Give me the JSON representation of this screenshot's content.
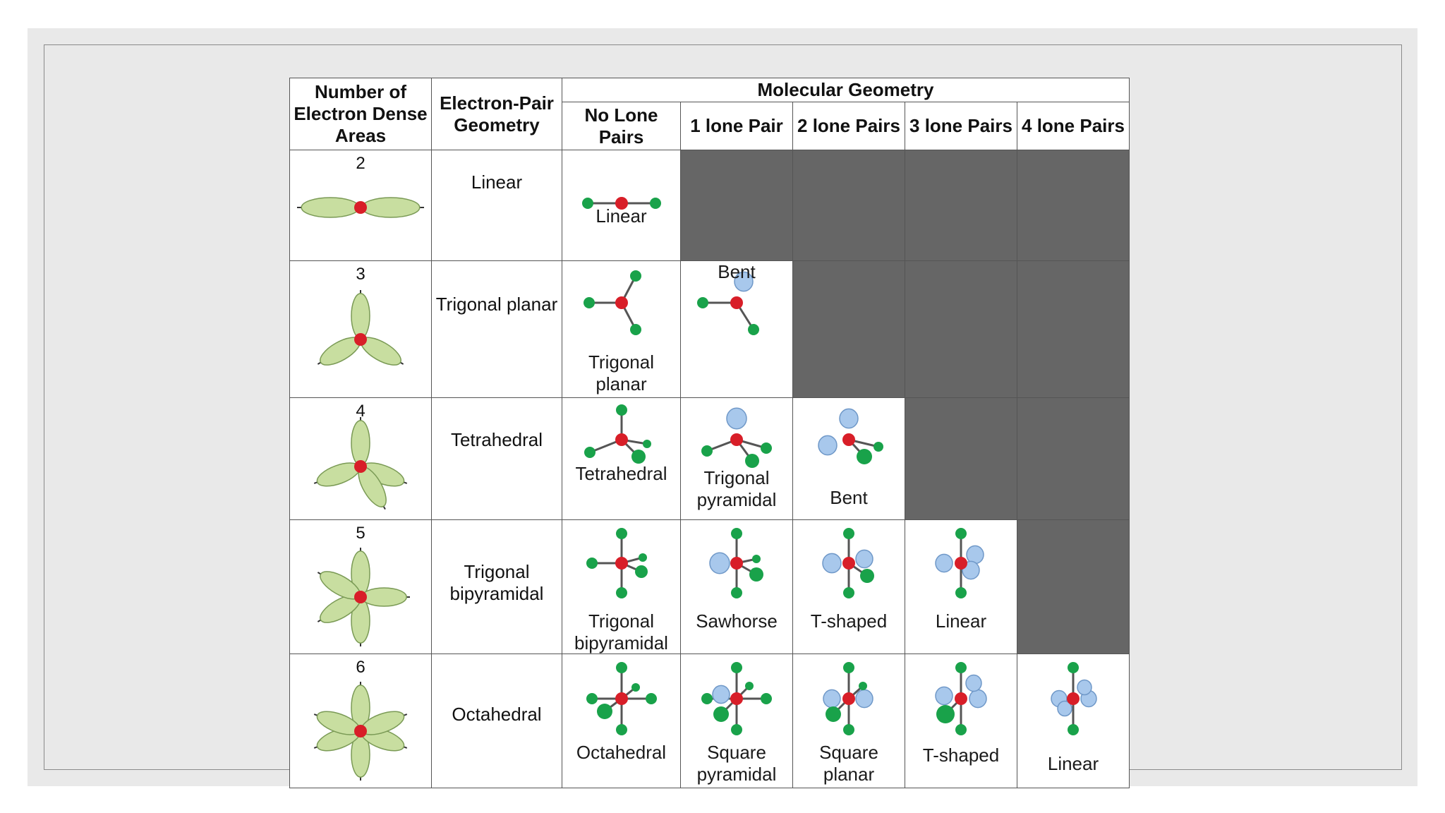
{
  "headers": {
    "count": "Number of Electron Dense Areas",
    "epg": "Electron-Pair Geometry",
    "molgeo": "Molecular Geometry",
    "lone": [
      "No Lone Pairs",
      "1 lone Pair",
      "2 lone Pairs",
      "3 lone Pairs",
      "4 lone Pairs"
    ]
  },
  "rows": [
    {
      "count": "2",
      "epg": "Linear",
      "mol": [
        "Linear",
        "",
        "",
        "",
        ""
      ]
    },
    {
      "count": "3",
      "epg": "Trigonal planar",
      "mol": [
        "Trigonal planar",
        "Bent",
        "",
        "",
        ""
      ]
    },
    {
      "count": "4",
      "epg": "Tetrahedral",
      "mol": [
        "Tetrahedral",
        "Trigonal pyramidal",
        "Bent",
        "",
        ""
      ]
    },
    {
      "count": "5",
      "epg": "Trigonal bipyramidal",
      "mol": [
        "Trigonal bipyramidal",
        "Sawhorse",
        "T-shaped",
        "Linear",
        ""
      ]
    },
    {
      "count": "6",
      "epg": "Octahedral",
      "mol": [
        "Octahedral",
        "Square pyramidal",
        "Square planar",
        "T-shaped",
        "Linear"
      ]
    }
  ],
  "colors": {
    "central_atom": "#d81e28",
    "outer_atom": "#19a24a",
    "lone_pair": "#a8c8ec",
    "orbital_lobe": "#c8dea0",
    "unused_cell": "#666666"
  },
  "icons": {
    "count_cells": "orbital-lobes-icon",
    "molecule_cells": "ball-and-stick-molecule-icon"
  }
}
